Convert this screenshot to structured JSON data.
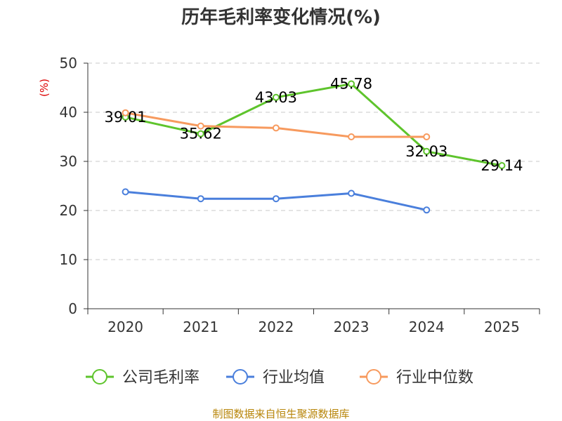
{
  "chart_data": {
    "type": "line",
    "title": "历年毛利率变化情况(%)",
    "ylabel": "(%)",
    "xlabel": "",
    "categories": [
      "2020",
      "2021",
      "2022",
      "2023",
      "2024",
      "2025"
    ],
    "ylim": [
      0,
      50
    ],
    "yticks": [
      0,
      10,
      20,
      30,
      40,
      50
    ],
    "grid": true,
    "legend_position": "bottom",
    "series": [
      {
        "name": "公司毛利率",
        "color": "#5ec42c",
        "values": [
          39.01,
          35.62,
          43.03,
          45.78,
          32.03,
          29.14
        ],
        "labels": [
          "39.01",
          "35.62",
          "43.03",
          "45.78",
          "32.03",
          "29.14"
        ]
      },
      {
        "name": "行业均值",
        "color": "#4a7fdc",
        "values": [
          23.8,
          22.4,
          22.4,
          23.5,
          20.1,
          null
        ]
      },
      {
        "name": "行业中位数",
        "color": "#f79a5e",
        "values": [
          39.9,
          37.2,
          36.8,
          35.0,
          35.0,
          null
        ]
      }
    ],
    "source": "制图数据来自恒生聚源数据库"
  }
}
